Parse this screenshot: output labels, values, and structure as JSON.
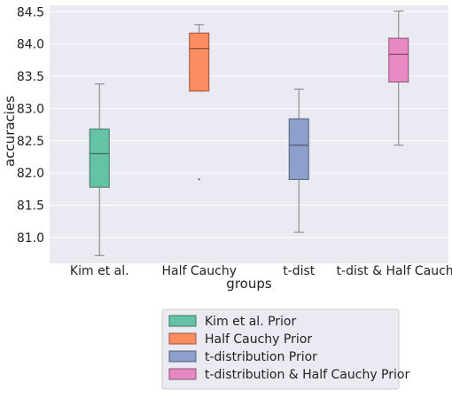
{
  "chart_data": {
    "type": "boxplot",
    "xlabel": "groups",
    "ylabel": "accuracies",
    "ylim": [
      80.6,
      84.6
    ],
    "yticks": [
      81.0,
      81.5,
      82.0,
      82.5,
      83.0,
      83.5,
      84.0,
      84.5
    ],
    "categories": [
      "Kim et al.",
      "Half Cauchy",
      "t-dist",
      "t-dist & Half Cauchy"
    ],
    "series": [
      {
        "name": "Kim et al. Prior",
        "category": "Kim et al.",
        "color": "#66c2a5",
        "min": 80.72,
        "q1": 81.78,
        "median": 82.3,
        "q3": 82.68,
        "max": 83.38,
        "outliers": []
      },
      {
        "name": "Half Cauchy Prior",
        "category": "Half Cauchy",
        "color": "#fc8d62",
        "min": 83.27,
        "q1": 83.27,
        "median": 83.93,
        "q3": 84.17,
        "max": 84.3,
        "outliers": [
          81.9
        ]
      },
      {
        "name": "t-distribution Prior",
        "category": "t-dist",
        "color": "#8da0cb",
        "min": 81.08,
        "q1": 81.9,
        "median": 82.43,
        "q3": 82.84,
        "max": 83.3,
        "outliers": []
      },
      {
        "name": "t-distribution & Half Cauchy Prior",
        "category": "t-dist & Half Cauchy",
        "color": "#e78ac3",
        "min": 82.43,
        "q1": 83.41,
        "median": 83.84,
        "q3": 84.09,
        "max": 84.51,
        "outliers": []
      }
    ],
    "grid": true,
    "legend_position": "below"
  }
}
